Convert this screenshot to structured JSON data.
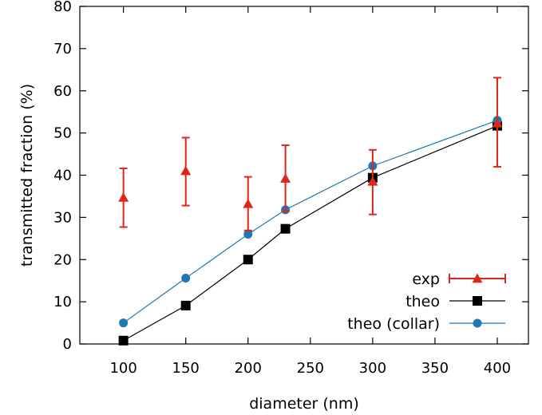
{
  "chart_data": {
    "type": "line",
    "title": "",
    "xlabel": "diameter (nm)",
    "ylabel": "transmitted fraction (%)",
    "xlim": [
      65,
      425
    ],
    "ylim": [
      0,
      80
    ],
    "xticks": [
      100,
      150,
      200,
      250,
      300,
      350,
      400
    ],
    "yticks": [
      0,
      10,
      20,
      30,
      40,
      50,
      60,
      70,
      80
    ],
    "grid": false,
    "legend_position": "bottom-right",
    "series": [
      {
        "name": "exp",
        "style": "triangles-with-errorbars",
        "color": "#e0251b",
        "x": [
          100,
          150,
          200,
          230,
          300,
          400
        ],
        "y": [
          34.7,
          41.0,
          33.2,
          39.2,
          38.5,
          52.3
        ],
        "y_low": [
          27.7,
          32.8,
          26.9,
          31.4,
          30.7,
          42.0
        ],
        "y_high": [
          41.6,
          48.9,
          39.6,
          47.1,
          46.0,
          63.1
        ]
      },
      {
        "name": "theo",
        "style": "squares-line",
        "color": "#000000",
        "x": [
          100,
          150,
          200,
          230,
          300,
          400
        ],
        "y": [
          0.8,
          9.1,
          20.0,
          27.3,
          39.4,
          51.7
        ]
      },
      {
        "name": "theo (collar)",
        "style": "circles-line",
        "color": "#1f77b4",
        "x": [
          100,
          150,
          200,
          230,
          300,
          400
        ],
        "y": [
          5.0,
          15.6,
          26.0,
          31.8,
          42.2,
          53.0
        ]
      }
    ]
  }
}
